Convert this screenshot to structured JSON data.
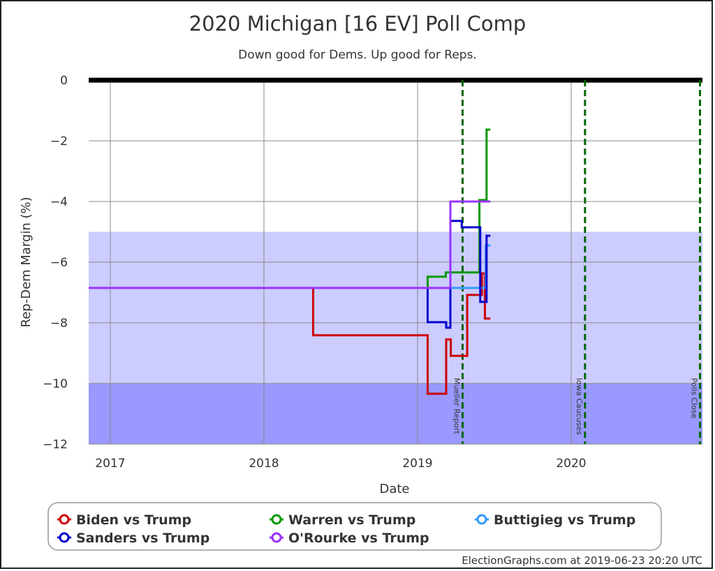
{
  "chart_data": {
    "type": "line",
    "title": "2020 Michigan [16 EV] Poll Comp",
    "subtitle": "Down good for Dems. Up good for Reps.",
    "xlabel": "Date",
    "ylabel": "Rep-Dem Margin (%)",
    "xlim": [
      "2016-11-08",
      "2020-11-03"
    ],
    "ylim": [
      -12,
      0
    ],
    "x_ticks": [
      "2017",
      "2018",
      "2019",
      "2020"
    ],
    "y_ticks": [
      0,
      -2,
      -4,
      -6,
      -8,
      -10,
      -12
    ],
    "grid": true,
    "legend_position": "bottom",
    "bands": [
      {
        "from": -5,
        "to": -10,
        "color": "#ccccff"
      },
      {
        "from": -10,
        "to": -12,
        "color": "#9999ff"
      }
    ],
    "events": [
      {
        "label": "Mueller Report",
        "date": "2019-04-18"
      },
      {
        "label": "Iowa Caucuses",
        "date": "2020-02-03"
      },
      {
        "label": "Polls Close",
        "date": "2020-11-03"
      }
    ],
    "end_date": "2019-06-23",
    "series": [
      {
        "name": "Biden vs Trump",
        "color": "#cc0000",
        "steps": [
          [
            "2016-11-08",
            -6.85
          ],
          [
            "2018-04-28",
            -8.41
          ],
          [
            "2019-01-25",
            -10.34
          ],
          [
            "2019-03-10",
            -8.55
          ],
          [
            "2019-03-21",
            -9.09
          ],
          [
            "2019-04-29",
            -7.08
          ],
          [
            "2019-06-03",
            -6.37
          ],
          [
            "2019-06-10",
            -7.86
          ]
        ]
      },
      {
        "name": "Warren vs Trump",
        "color": "#009900",
        "steps": [
          [
            "2016-11-08",
            -6.85
          ],
          [
            "2019-01-25",
            -6.48
          ],
          [
            "2019-03-09",
            -6.34
          ],
          [
            "2019-05-28",
            -3.95
          ],
          [
            "2019-06-14",
            -1.63
          ]
        ]
      },
      {
        "name": "Buttigieg vs Trump",
        "color": "#3399ff",
        "steps": [
          [
            "2016-11-08",
            -6.85
          ],
          [
            "2019-06-12",
            -5.45
          ]
        ]
      },
      {
        "name": "Sanders vs Trump",
        "color": "#0000cc",
        "steps": [
          [
            "2016-11-08",
            -6.85
          ],
          [
            "2019-01-25",
            -7.98
          ],
          [
            "2019-03-10",
            -8.16
          ],
          [
            "2019-03-20",
            -4.64
          ],
          [
            "2019-04-16",
            -4.85
          ],
          [
            "2019-05-30",
            -7.31
          ],
          [
            "2019-06-14",
            -5.13
          ]
        ]
      },
      {
        "name": "O'Rourke vs Trump",
        "color": "#9933ff",
        "steps": [
          [
            "2016-11-08",
            -6.85
          ],
          [
            "2019-03-20",
            -4.0
          ]
        ]
      }
    ]
  },
  "footer": "ElectionGraphs.com at 2019-06-23 20:20 UTC"
}
